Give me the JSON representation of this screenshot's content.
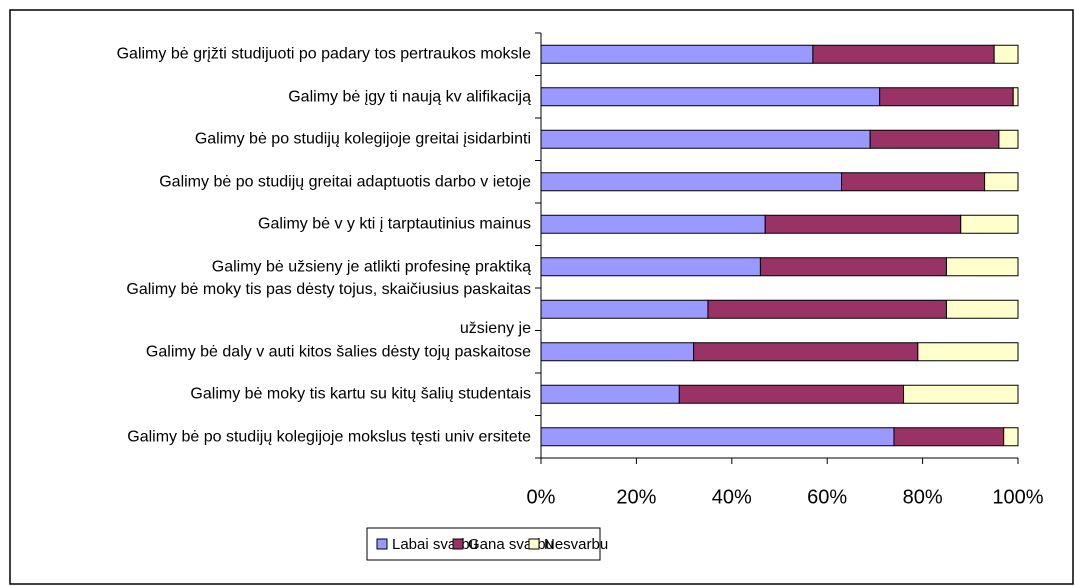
{
  "chart_data": {
    "type": "bar",
    "orientation": "horizontal",
    "stacked": true,
    "categories": [
      "Galimy bė grįžti studijuoti po padary tos pertraukos moksle",
      "Galimy bė įgy ti naują kv alifikaciją",
      "Galimy bė po studijų kolegijoje greitai įsidarbinti",
      "Galimy bė po studijų greitai adaptuotis darbo v ietoje",
      "Galimy bė v y kti į tarptautinius mainus",
      "Galimy bė užsieny je atlikti profesinę praktiką",
      "Galimy bė moky tis pas dėsty tojus, skaičiusius paskaitas\nužsieny je",
      "Galimy bė daly v auti kitos šalies dėsty tojų paskaitose",
      "Galimy bė moky tis  kartu su kitų šalių studentais",
      "Galimy bė po studijų kolegijoje mokslus tęsti univ ersitete"
    ],
    "series": [
      {
        "name": "Labai svarbu",
        "color": "#9999ff",
        "values": [
          57,
          71,
          69,
          63,
          47,
          46,
          35,
          32,
          29,
          74
        ]
      },
      {
        "name": "Gana svarbu",
        "color": "#993366",
        "values": [
          38,
          28,
          27,
          30,
          41,
          39,
          50,
          47,
          47,
          23
        ]
      },
      {
        "name": "Nesvarbu",
        "color": "#ffffcc",
        "values": [
          5,
          1,
          4,
          7,
          12,
          15,
          15,
          21,
          24,
          3
        ]
      }
    ],
    "xlim": [
      0,
      100
    ],
    "xticks": [
      {
        "value": 0,
        "label": "0%"
      },
      {
        "value": 20,
        "label": "20%"
      },
      {
        "value": 40,
        "label": "40%"
      },
      {
        "value": 60,
        "label": "60%"
      },
      {
        "value": 80,
        "label": "80%"
      },
      {
        "value": 100,
        "label": "100%"
      }
    ],
    "legend": "bottom"
  }
}
